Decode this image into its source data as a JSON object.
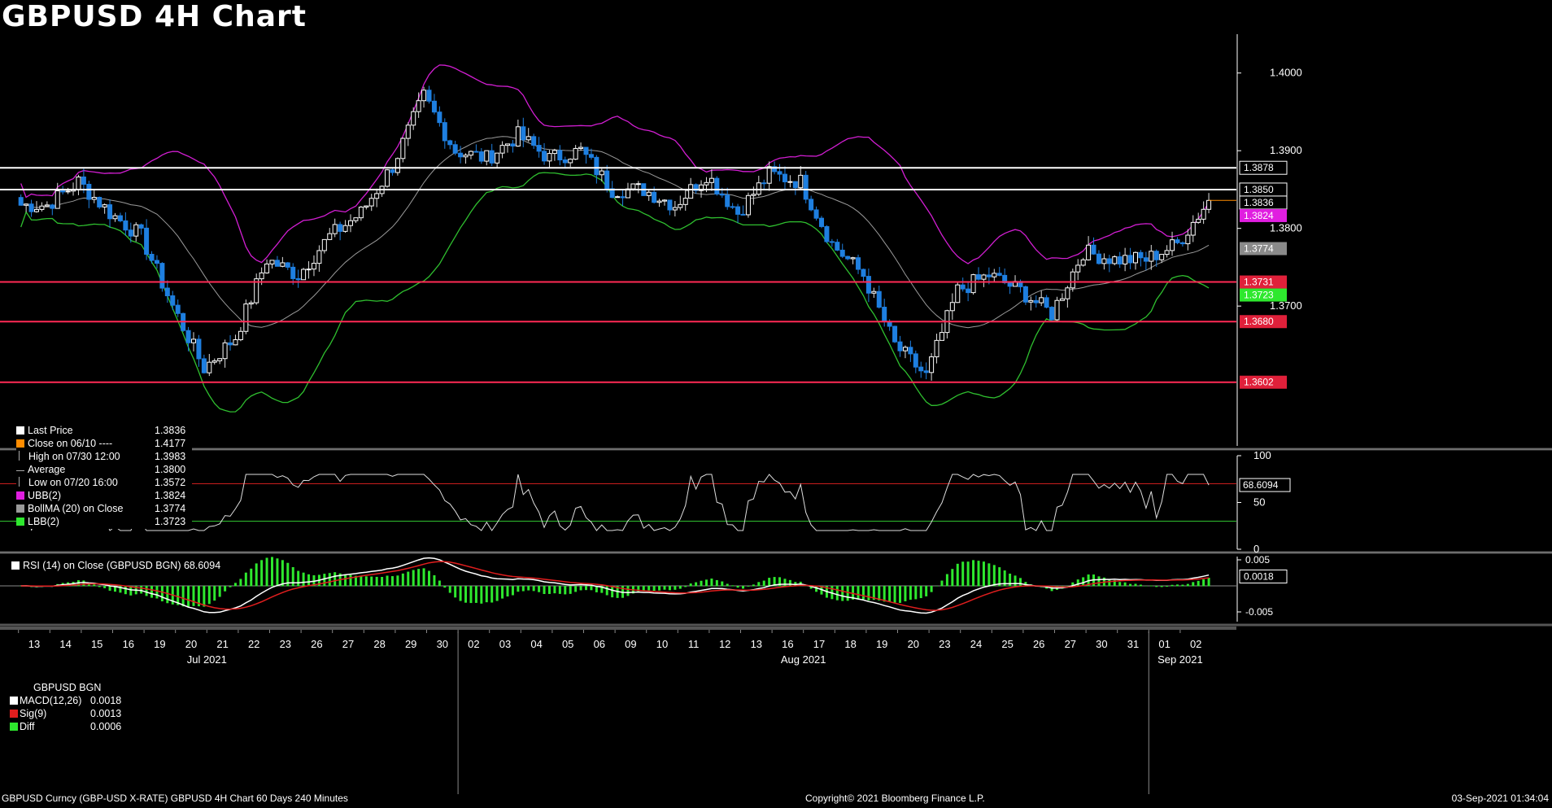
{
  "title": "GBPUSD 4H Chart",
  "colors": {
    "background": "#000000",
    "bullish_candle": "#ffffff",
    "bearish_candle": "#1e7fe0",
    "upper_band": "#d21ed2",
    "middle_band": "#9a9a9a",
    "lower_band": "#2fbf2f",
    "resistance_line": "#ffffff",
    "support_line": "#ff2a55",
    "last_price_line": "#ff8c00"
  },
  "legend": {
    "items": [
      {
        "label": "Last Price",
        "value": "1.3836",
        "icon": "white-square"
      },
      {
        "label": "Close on 06/10 ----",
        "value": "1.4177",
        "icon": "orange-square"
      },
      {
        "label": "High on 07/30 12:00",
        "value": "1.3983",
        "icon": "high-marker"
      },
      {
        "label": "Average",
        "value": "1.3800",
        "icon": "average-marker"
      },
      {
        "label": "Low on 07/20 16:00",
        "value": "1.3572",
        "icon": "low-marker"
      },
      {
        "label": "UBB(2)",
        "value": "1.3824",
        "icon": "magenta-square"
      },
      {
        "label": "BollMA (20)  on Close",
        "value": "1.3774",
        "icon": "grey-square"
      },
      {
        "label": "LBB(2)",
        "value": "1.3723",
        "icon": "green-square"
      }
    ]
  },
  "rsi_panel": {
    "label": "RSI (14)  on Close (GBPUSD BGN) 68.6094",
    "axis_ticks": [
      "100",
      "50",
      "0"
    ],
    "last_label": "68.6094"
  },
  "macd_panel": {
    "header": "GBPUSD BGN",
    "rows": [
      {
        "label": "MACD(12,26)",
        "value": "0.0018",
        "icon": "white-square"
      },
      {
        "label": "Sig(9)",
        "value": "0.0013",
        "icon": "red-square"
      },
      {
        "label": "Diff",
        "value": "0.0006",
        "icon": "green-square"
      }
    ],
    "axis_ticks": [
      "0.005",
      "-0.005"
    ],
    "last_label": "0.0018"
  },
  "price_axis": {
    "ticks": [
      "1.4000",
      "1.3900",
      "1.3800",
      "1.3700"
    ],
    "labels": [
      {
        "text": "1.3878",
        "kind": "white-box"
      },
      {
        "text": "1.3850",
        "kind": "white-box"
      },
      {
        "text": "1.3836",
        "kind": "white-box"
      },
      {
        "text": "1.3824",
        "kind": "magenta-box"
      },
      {
        "text": "1.3774",
        "kind": "grey-box"
      },
      {
        "text": "1.3731",
        "kind": "red-box"
      },
      {
        "text": "1.3723",
        "kind": "green-box"
      },
      {
        "text": "1.3680",
        "kind": "red-box"
      },
      {
        "text": "1.3602",
        "kind": "red-box"
      }
    ]
  },
  "time_axis": {
    "days": [
      "13",
      "14",
      "15",
      "16",
      "19",
      "20",
      "21",
      "22",
      "23",
      "26",
      "27",
      "28",
      "29",
      "30",
      "02",
      "03",
      "04",
      "05",
      "06",
      "09",
      "10",
      "11",
      "12",
      "13",
      "16",
      "17",
      "18",
      "19",
      "20",
      "23",
      "24",
      "25",
      "26",
      "27",
      "30",
      "31",
      "01",
      "02"
    ],
    "months": [
      "Jul 2021",
      "Aug 2021",
      "Sep 2021"
    ]
  },
  "footer": {
    "left": "GBPUSD Curncy (GBP-USD X-RATE) GBPUSD 4H Chart 60 Days 240 Minutes",
    "middle": "Copyright© 2021 Bloomberg Finance L.P.",
    "right": "03-Sep-2021 01:34:04"
  },
  "chart_data": {
    "type": "candlestick",
    "title": "GBPUSD 4H Chart",
    "x_unit": "trading day",
    "x": [
      "13",
      "14",
      "15",
      "16",
      "19",
      "20",
      "21",
      "22",
      "23",
      "26",
      "27",
      "28",
      "29",
      "30",
      "02",
      "03",
      "04",
      "05",
      "06",
      "09",
      "10",
      "11",
      "12",
      "13",
      "16",
      "17",
      "18",
      "19",
      "20",
      "23",
      "24",
      "25",
      "26",
      "27",
      "30",
      "31",
      "01",
      "02"
    ],
    "daily_close": [
      1.383,
      1.386,
      1.382,
      1.379,
      1.37,
      1.362,
      1.366,
      1.376,
      1.374,
      1.379,
      1.382,
      1.388,
      1.397,
      1.39,
      1.389,
      1.392,
      1.389,
      1.39,
      1.385,
      1.385,
      1.383,
      1.387,
      1.382,
      1.387,
      1.386,
      1.378,
      1.374,
      1.365,
      1.361,
      1.372,
      1.374,
      1.372,
      1.369,
      1.377,
      1.376,
      1.376,
      1.378,
      1.3836
    ],
    "ylim": [
      1.352,
      1.405
    ],
    "horizontal_levels": {
      "resistance": [
        1.3878,
        1.385
      ],
      "support": [
        1.3731,
        1.368,
        1.3602
      ]
    },
    "last_price": 1.3836,
    "bollinger": {
      "upper": 1.3824,
      "middle": 1.3774,
      "lower": 1.3723
    },
    "rsi": {
      "last": 68.6094,
      "upper_level": 70,
      "lower_level": 30,
      "ylim": [
        0,
        100
      ]
    },
    "macd": {
      "macd": 0.0018,
      "signal": 0.0013,
      "diff": 0.0006
    }
  }
}
